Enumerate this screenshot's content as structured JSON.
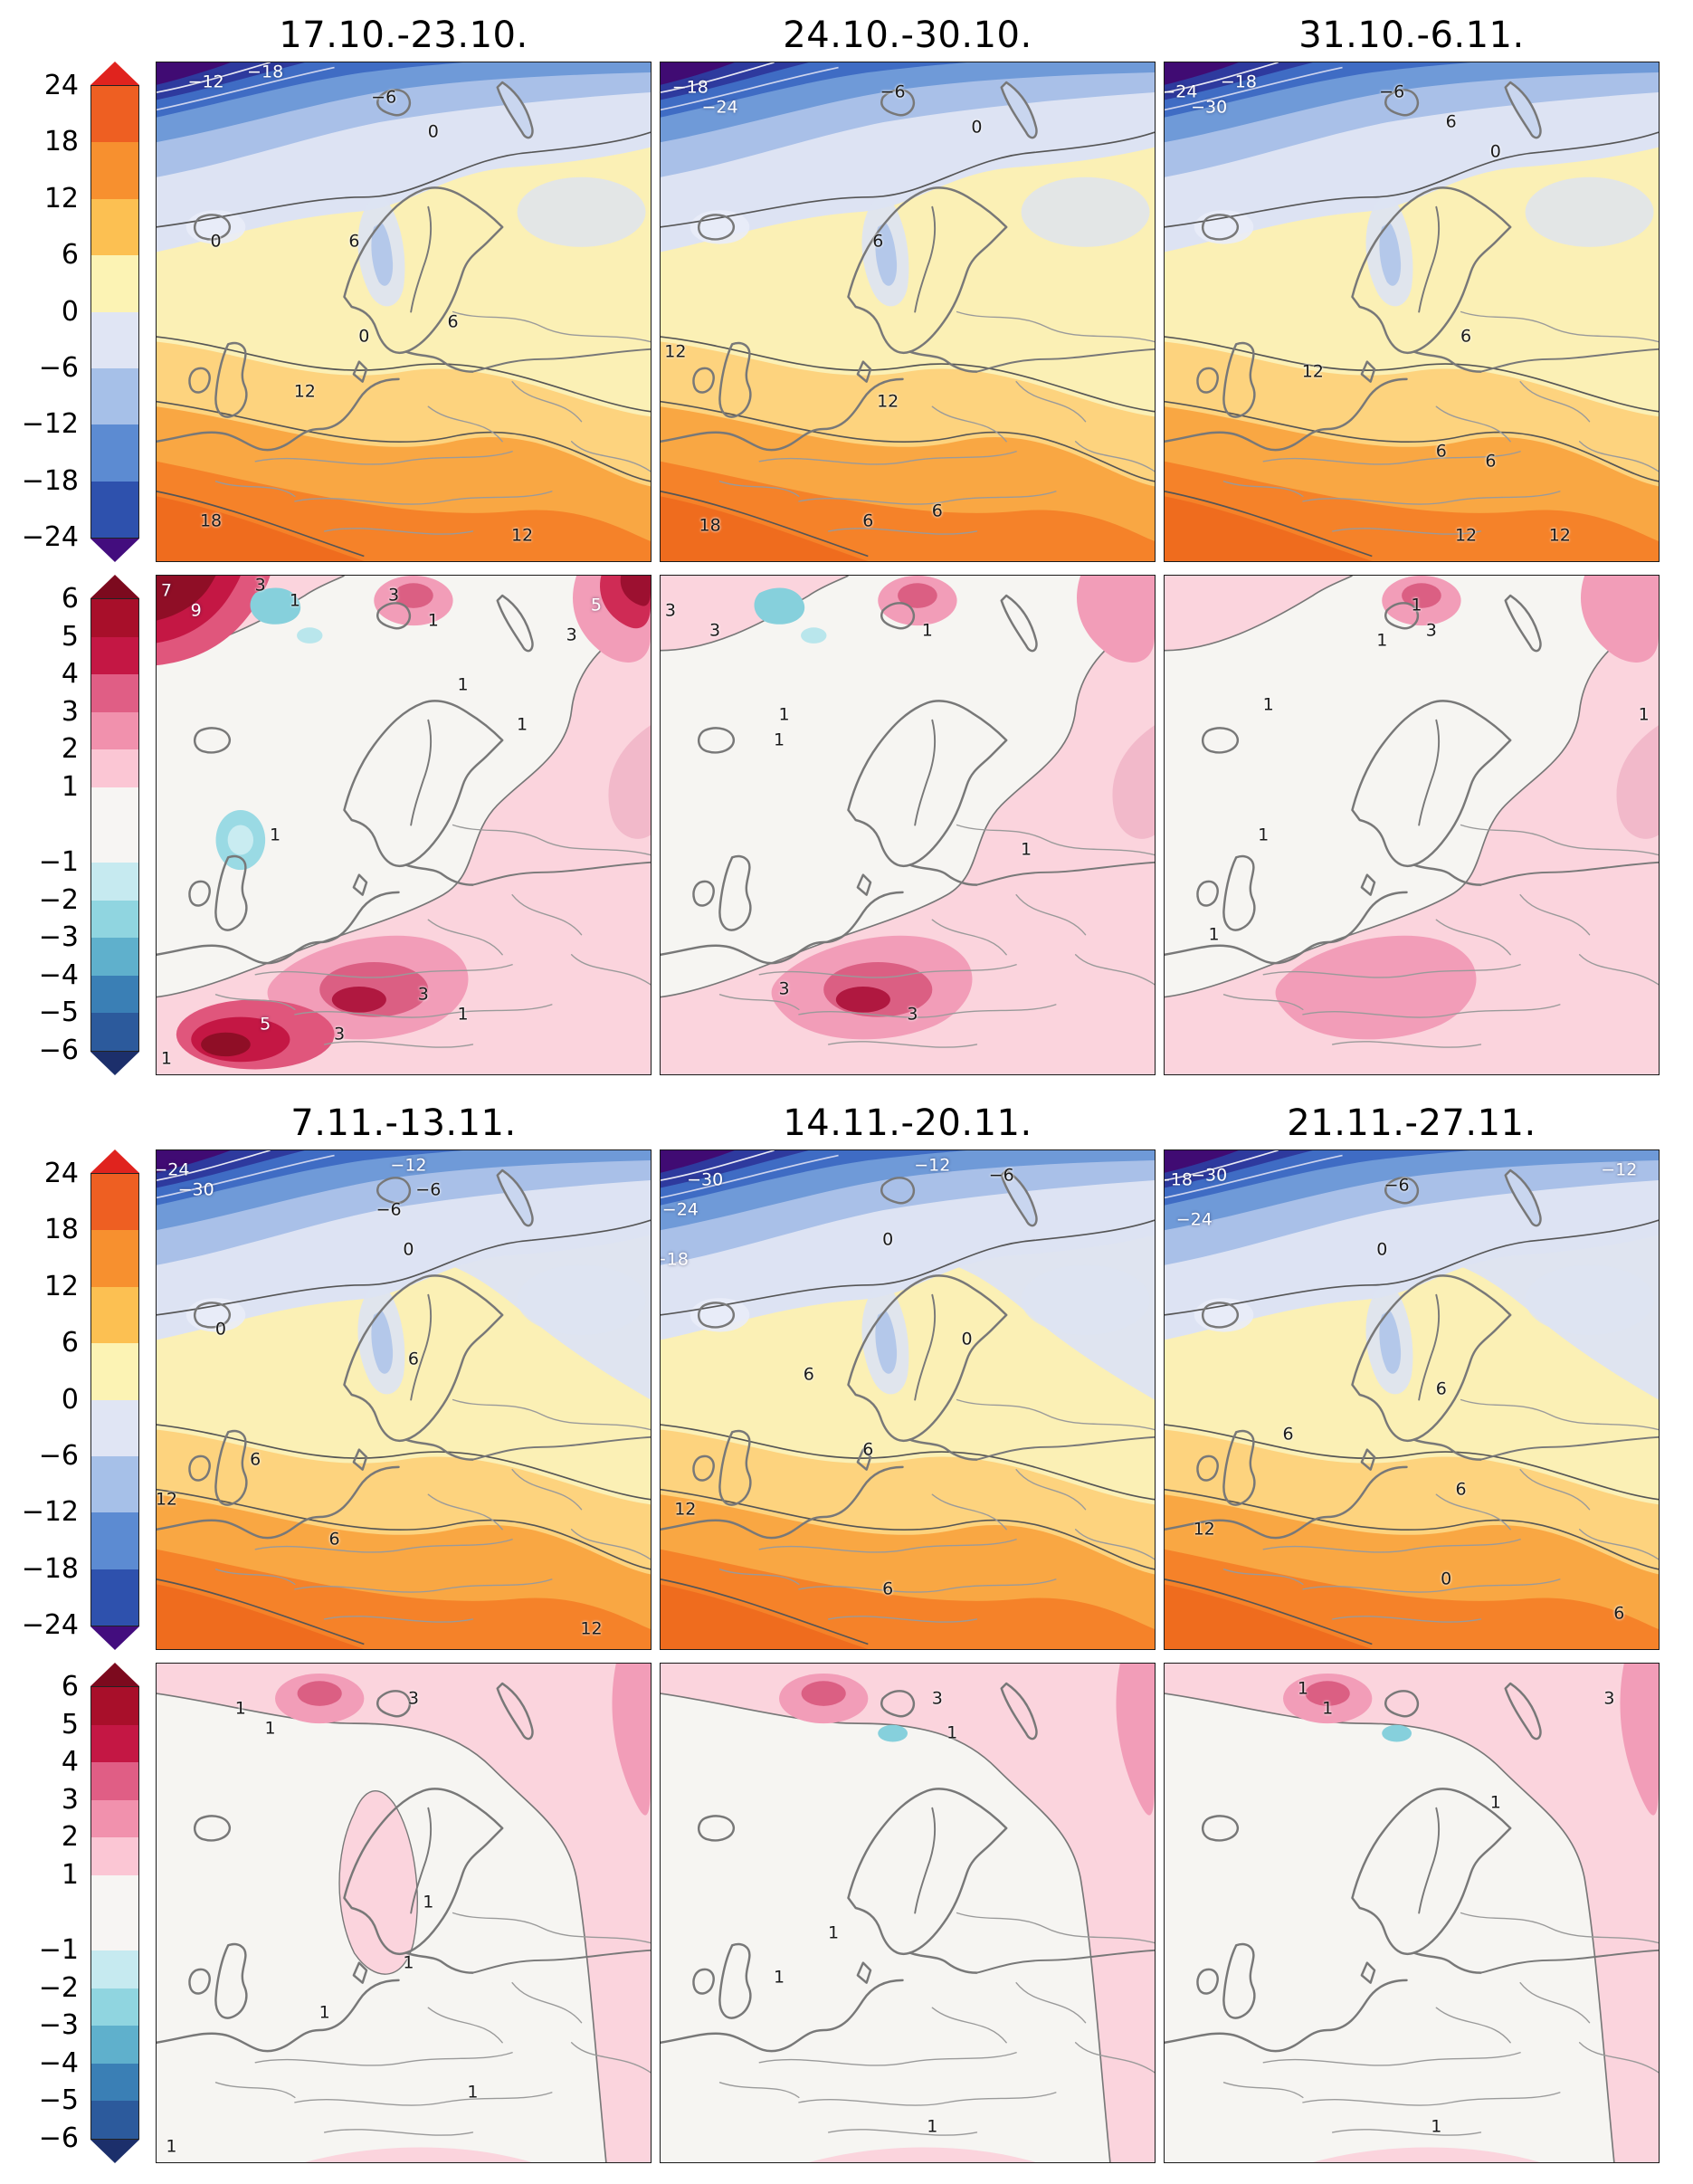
{
  "figure": {
    "titles_top": [
      "17.10.-23.10.",
      "24.10.-30.10.",
      "31.10.-6.11."
    ],
    "titles_bottom": [
      "7.11.-13.11.",
      "14.11.-20.11.",
      "21.11.-27.11."
    ]
  },
  "colorbars": {
    "temp": {
      "arrow_top": "#e0231e",
      "arrow_bottom": "#430d7e",
      "segments": [
        {
          "span": 1,
          "color": "#ee5f22"
        },
        {
          "span": 1,
          "color": "#f7902f"
        },
        {
          "span": 1,
          "color": "#fcc052"
        },
        {
          "span": 1,
          "color": "#fcf3b4"
        },
        {
          "span": 1,
          "color": "#e0e5f4"
        },
        {
          "span": 1,
          "color": "#a6c0e8"
        },
        {
          "span": 1,
          "color": "#5c8bd2"
        },
        {
          "span": 1,
          "color": "#2e51ad"
        }
      ],
      "ticks": [
        {
          "label": "24",
          "pos": 0
        },
        {
          "label": "18",
          "pos": 12.5
        },
        {
          "label": "12",
          "pos": 25
        },
        {
          "label": "6",
          "pos": 37.5
        },
        {
          "label": "0",
          "pos": 50
        },
        {
          "label": "−6",
          "pos": 62.5
        },
        {
          "label": "−12",
          "pos": 75
        },
        {
          "label": "−18",
          "pos": 87.5
        },
        {
          "label": "−24",
          "pos": 100
        }
      ]
    },
    "anom": {
      "arrow_top": "#7c0a1e",
      "arrow_bottom": "#1c2f6b",
      "segments": [
        {
          "span": 1,
          "color": "#a80f2a"
        },
        {
          "span": 1,
          "color": "#c41744"
        },
        {
          "span": 1,
          "color": "#e05e85"
        },
        {
          "span": 1,
          "color": "#f191ad"
        },
        {
          "span": 1,
          "color": "#fbc6d4"
        },
        {
          "span": 2,
          "color": "#f7f5f3"
        },
        {
          "span": 1,
          "color": "#c6eaf0"
        },
        {
          "span": 1,
          "color": "#90d5e0"
        },
        {
          "span": 1,
          "color": "#5fb0cc"
        },
        {
          "span": 1,
          "color": "#3a7fb5"
        },
        {
          "span": 1,
          "color": "#2c5a9c"
        }
      ],
      "ticks": [
        {
          "label": "6",
          "pos": 0
        },
        {
          "label": "5",
          "pos": 8.33
        },
        {
          "label": "4",
          "pos": 16.67
        },
        {
          "label": "3",
          "pos": 25
        },
        {
          "label": "2",
          "pos": 33.33
        },
        {
          "label": "1",
          "pos": 41.67
        },
        {
          "label": "−1",
          "pos": 58.33
        },
        {
          "label": "−2",
          "pos": 66.67
        },
        {
          "label": "−3",
          "pos": 75
        },
        {
          "label": "−4",
          "pos": 83.33
        },
        {
          "label": "−5",
          "pos": 91.67
        },
        {
          "label": "−6",
          "pos": 100
        }
      ]
    }
  },
  "contour_labels": {
    "t1": [
      [
        "−12",
        10,
        4,
        "w"
      ],
      [
        "−18",
        22,
        2,
        "w"
      ],
      [
        "−6",
        46,
        7
      ],
      [
        "0",
        56,
        14
      ],
      [
        "0",
        12,
        36
      ],
      [
        "6",
        40,
        36
      ],
      [
        "0",
        42,
        55
      ],
      [
        "6",
        60,
        52
      ],
      [
        "12",
        30,
        66
      ],
      [
        "18",
        11,
        92
      ],
      [
        "12",
        74,
        95
      ]
    ],
    "t2": [
      [
        "−18",
        6,
        5,
        "w"
      ],
      [
        "−24",
        12,
        9,
        "w"
      ],
      [
        "−6",
        47,
        6
      ],
      [
        "0",
        64,
        13
      ],
      [
        "6",
        44,
        36
      ],
      [
        "12",
        3,
        58
      ],
      [
        "12",
        46,
        68
      ],
      [
        "18",
        10,
        93
      ],
      [
        "6",
        42,
        92
      ],
      [
        "6",
        56,
        90
      ]
    ],
    "t3": [
      [
        "−24",
        3,
        6,
        "w"
      ],
      [
        "−30",
        9,
        9,
        "w"
      ],
      [
        "−18",
        15,
        4,
        "w"
      ],
      [
        "−6",
        46,
        6
      ],
      [
        "6",
        58,
        12
      ],
      [
        "0",
        67,
        18
      ],
      [
        "6",
        61,
        55
      ],
      [
        "12",
        30,
        62
      ],
      [
        "6",
        56,
        78
      ],
      [
        "6",
        66,
        80
      ],
      [
        "12",
        61,
        95
      ],
      [
        "12",
        80,
        95
      ]
    ],
    "a1": [
      [
        "7",
        2,
        3,
        "w"
      ],
      [
        "9",
        8,
        7,
        "w"
      ],
      [
        "3",
        21,
        2
      ],
      [
        "1",
        28,
        5
      ],
      [
        "3",
        48,
        4
      ],
      [
        "1",
        56,
        9
      ],
      [
        "5",
        89,
        6,
        "w"
      ],
      [
        "3",
        84,
        12
      ],
      [
        "1",
        62,
        22
      ],
      [
        "1",
        74,
        30
      ],
      [
        "1",
        24,
        52
      ],
      [
        "3",
        54,
        84
      ],
      [
        "5",
        22,
        90,
        "w"
      ],
      [
        "3",
        37,
        92
      ],
      [
        "1",
        62,
        88
      ],
      [
        "1",
        2,
        97
      ]
    ],
    "a2": [
      [
        "3",
        2,
        7
      ],
      [
        "3",
        11,
        11
      ],
      [
        "1",
        54,
        11
      ],
      [
        "1",
        25,
        28
      ],
      [
        "1",
        24,
        33
      ],
      [
        "3",
        25,
        83
      ],
      [
        "3",
        51,
        88
      ],
      [
        "1",
        74,
        55
      ]
    ],
    "a3": [
      [
        "1",
        51,
        6
      ],
      [
        "3",
        54,
        11
      ],
      [
        "1",
        44,
        13
      ],
      [
        "1",
        21,
        26
      ],
      [
        "1",
        20,
        52
      ],
      [
        "1",
        10,
        72
      ],
      [
        "1",
        97,
        28
      ]
    ],
    "t4": [
      [
        "−24",
        3,
        4,
        "w"
      ],
      [
        "−30",
        8,
        8,
        "w"
      ],
      [
        "−12",
        51,
        3,
        "w"
      ],
      [
        "−6",
        47,
        12
      ],
      [
        "−6",
        55,
        8
      ],
      [
        "0",
        51,
        20
      ],
      [
        "0",
        13,
        36
      ],
      [
        "6",
        52,
        42
      ],
      [
        "6",
        20,
        62
      ],
      [
        "12",
        2,
        70
      ],
      [
        "6",
        36,
        78
      ],
      [
        "12",
        88,
        96
      ]
    ],
    "t5": [
      [
        "−30",
        9,
        6,
        "w"
      ],
      [
        "−24",
        4,
        12,
        "w"
      ],
      [
        "−12",
        55,
        3,
        "w"
      ],
      [
        "−6",
        69,
        5
      ],
      [
        "−18",
        2,
        22,
        "w"
      ],
      [
        "0",
        46,
        18
      ],
      [
        "0",
        62,
        38
      ],
      [
        "6",
        30,
        45
      ],
      [
        "6",
        42,
        60
      ],
      [
        "12",
        5,
        72
      ],
      [
        "6",
        46,
        88
      ]
    ],
    "t6": [
      [
        "−18",
        2,
        6,
        "w"
      ],
      [
        "−30",
        9,
        5,
        "w"
      ],
      [
        "−24",
        6,
        14,
        "w"
      ],
      [
        "−6",
        47,
        7
      ],
      [
        "−12",
        92,
        4,
        "w"
      ],
      [
        "0",
        44,
        20
      ],
      [
        "6",
        56,
        48
      ],
      [
        "6",
        25,
        57
      ],
      [
        "12",
        8,
        76
      ],
      [
        "6",
        60,
        68
      ],
      [
        "0",
        57,
        86
      ],
      [
        "6",
        92,
        93
      ]
    ],
    "a4": [
      [
        "1",
        17,
        9
      ],
      [
        "1",
        23,
        13
      ],
      [
        "3",
        52,
        7
      ],
      [
        "1",
        55,
        48
      ],
      [
        "1",
        51,
        60
      ],
      [
        "1",
        34,
        70
      ],
      [
        "1",
        64,
        86
      ],
      [
        "1",
        3,
        97
      ]
    ],
    "a5": [
      [
        "3",
        56,
        7
      ],
      [
        "1",
        59,
        14
      ],
      [
        "1",
        35,
        54
      ],
      [
        "1",
        24,
        63
      ],
      [
        "1",
        55,
        93
      ]
    ],
    "a6": [
      [
        "1",
        28,
        5
      ],
      [
        "1",
        33,
        9
      ],
      [
        "3",
        90,
        7
      ],
      [
        "1",
        67,
        28
      ],
      [
        "1",
        55,
        93
      ]
    ]
  },
  "chart_data": {
    "type": "heatmap",
    "description": "Six weekly forecast maps over Europe: filled-contour mean temperature (rows 1 and 3) and temperature anomaly (rows 2 and 4), each row with its own colorbar",
    "weeks": [
      "17.10.-23.10.",
      "24.10.-30.10.",
      "31.10.-6.11.",
      "7.11.-13.11.",
      "14.11.-20.11.",
      "21.11.-27.11."
    ],
    "temperature_colorbar_ticks": [
      24,
      18,
      12,
      6,
      0,
      -6,
      -12,
      -18,
      -24
    ],
    "anomaly_colorbar_ticks": [
      6,
      5,
      4,
      3,
      2,
      1,
      -1,
      -2,
      -3,
      -4,
      -5,
      -6
    ],
    "layout": "4 rows x 3 columns of map panels; colorbar at left of each row; week titles above rows 1 and 3",
    "grid": false,
    "legend_position": "left-colorbars"
  }
}
